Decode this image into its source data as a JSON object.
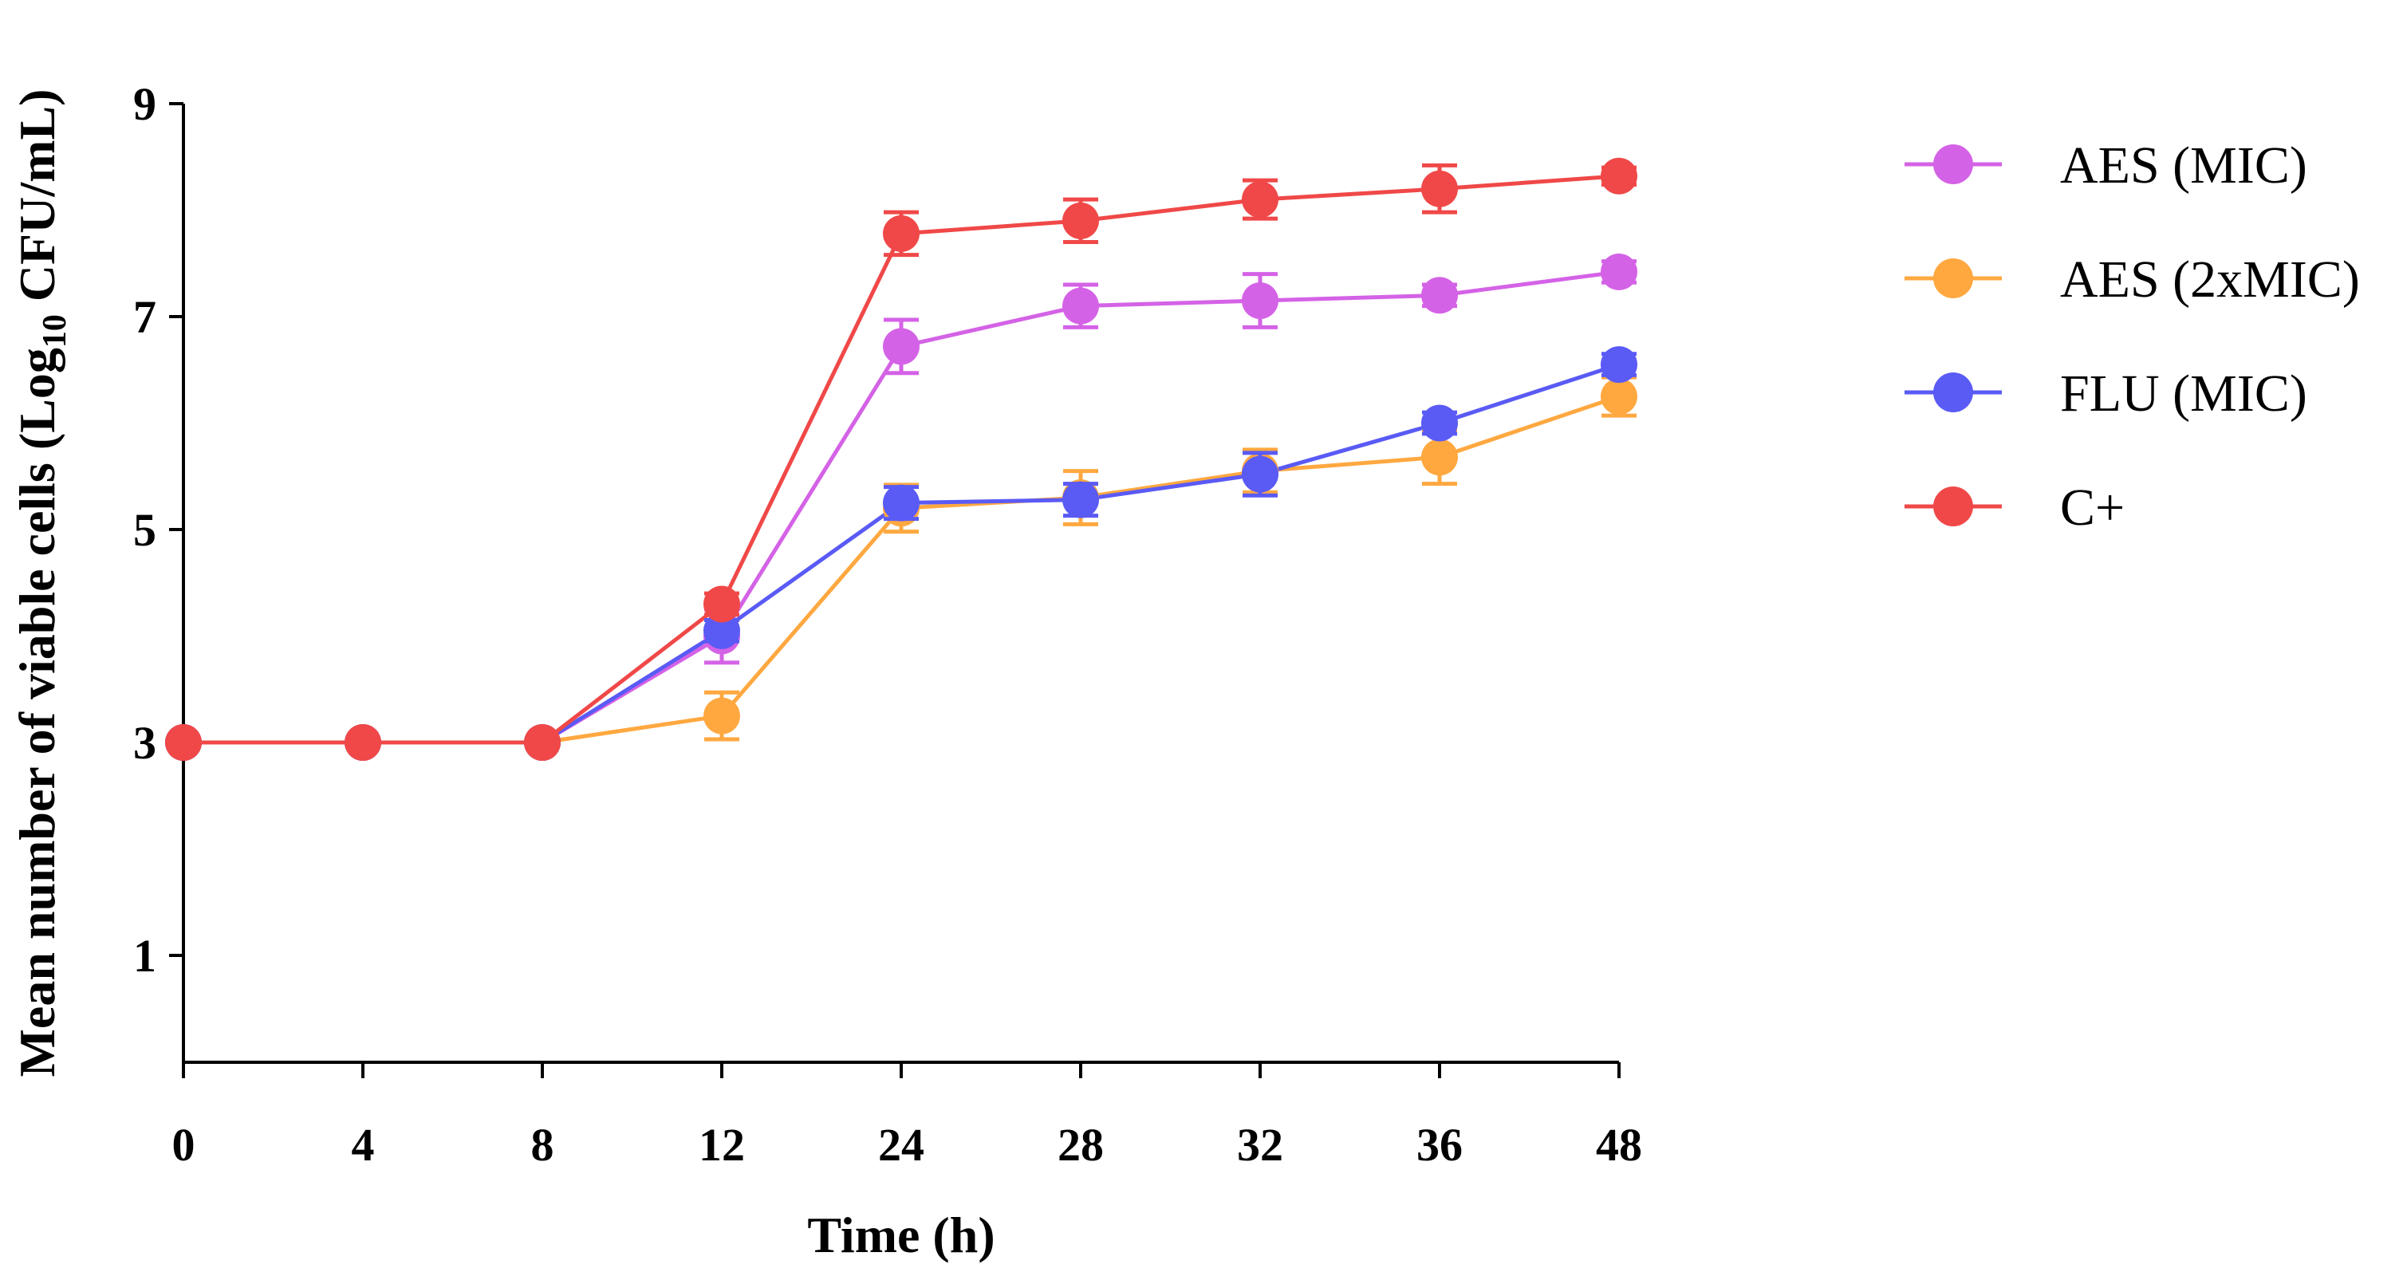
{
  "chart_data": {
    "type": "line",
    "title": "",
    "xlabel": "Time (h)",
    "ylabel": {
      "prefix": "Mean number of viable cells (Log",
      "subscript": "10",
      "suffix": " CFU/mL)"
    },
    "categories": [
      "0",
      "4",
      "8",
      "12",
      "24",
      "28",
      "32",
      "36",
      "48"
    ],
    "y_ticks": [
      1,
      3,
      5,
      7,
      9
    ],
    "ylim": [
      0,
      9
    ],
    "grid": false,
    "legend_position": "right",
    "series": [
      {
        "name": "AES (MIC)",
        "color": "#d462e6",
        "values": [
          3.0,
          3.0,
          3.0,
          4.0,
          6.72,
          7.1,
          7.15,
          7.2,
          7.42
        ],
        "errors": [
          0,
          0,
          0,
          0.25,
          0.25,
          0.2,
          0.25,
          0.1,
          0.1
        ]
      },
      {
        "name": "AES (2xMIC)",
        "color": "#ffa840",
        "values": [
          3.0,
          3.0,
          3.0,
          3.25,
          5.2,
          5.3,
          5.55,
          5.68,
          6.25
        ],
        "errors": [
          0,
          0,
          0,
          0.22,
          0.22,
          0.25,
          0.2,
          0.25,
          0.18
        ]
      },
      {
        "name": "FLU (MIC)",
        "color": "#5a5af5",
        "values": [
          3.0,
          3.0,
          3.0,
          4.05,
          5.25,
          5.28,
          5.52,
          6.0,
          6.55
        ],
        "errors": [
          0,
          0,
          0,
          0.1,
          0.15,
          0.15,
          0.2,
          0.1,
          0.1
        ]
      },
      {
        "name": "C+",
        "color": "#f04848",
        "values": [
          3.0,
          3.0,
          3.0,
          4.3,
          7.78,
          7.9,
          8.1,
          8.2,
          8.32
        ],
        "errors": [
          0,
          0,
          0,
          0.1,
          0.2,
          0.2,
          0.18,
          0.22,
          0.08
        ]
      }
    ]
  }
}
